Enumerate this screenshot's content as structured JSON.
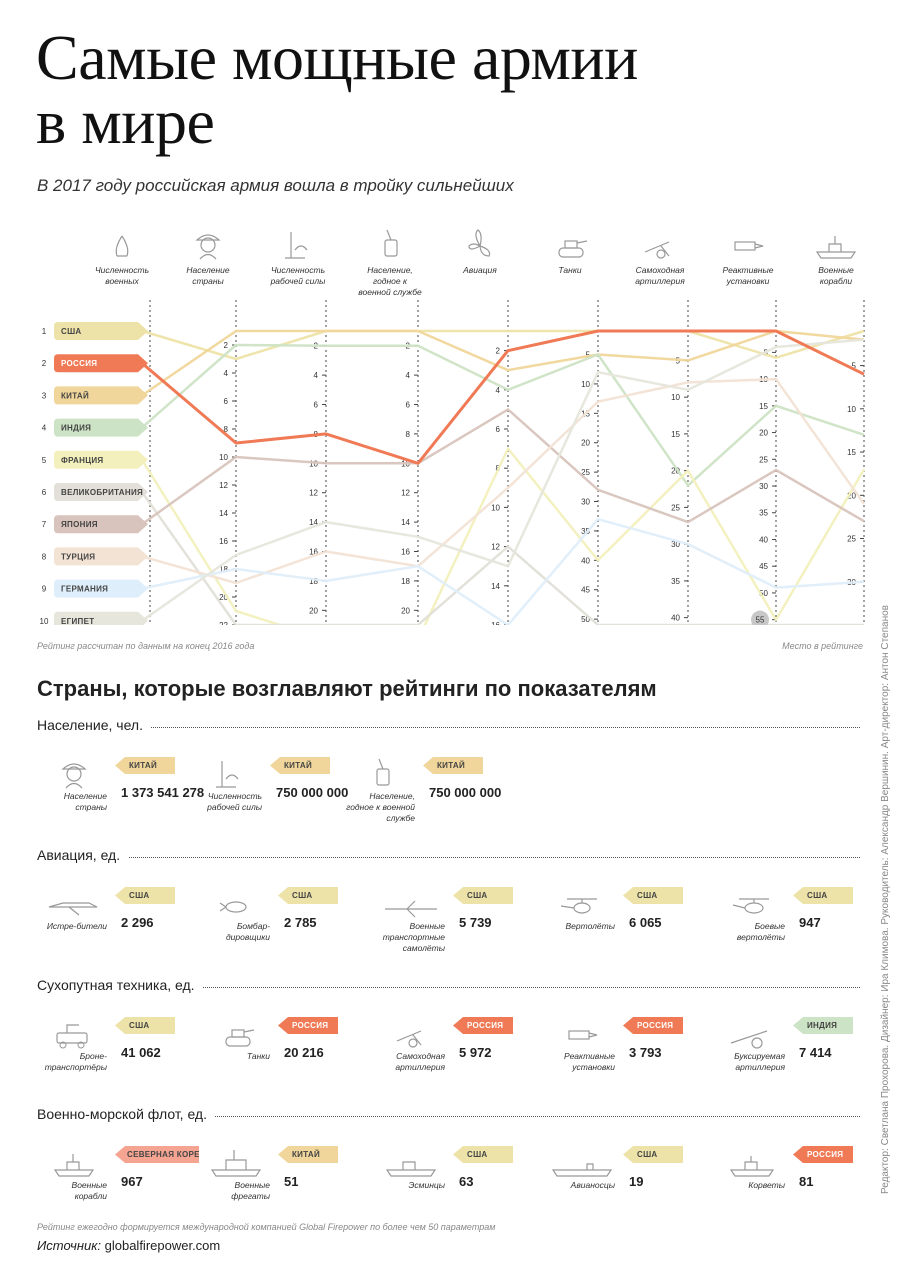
{
  "header": {
    "title_line1": "Самые мощные армии",
    "title_line2": "в мире",
    "subtitle": "В 2017 году российская армия вошла в тройку сильнейших"
  },
  "colors": {
    "США": "#ede3a8",
    "РОССИЯ": "#ef7a55",
    "КИТАЙ": "#f0d69a",
    "ИНДИЯ": "#cde3c5",
    "ФРАНЦИЯ": "#f3f0bd",
    "ВЕЛИКОБРИТАНИЯ": "#e2e0d8",
    "ЯПОНИЯ": "#d8c4bd",
    "ТУРЦИЯ": "#f2e3d5",
    "ГЕРМАНИЯ": "#dfeefb",
    "ЕГИПЕТ": "#e6e6dc",
    "СЕВЕРНАЯ КОРЕЯ": "#f5a492"
  },
  "chart_data": {
    "type": "bump",
    "countries": [
      {
        "rank": "1",
        "name": "США"
      },
      {
        "rank": "2",
        "name": "РОССИЯ"
      },
      {
        "rank": "3",
        "name": "КИТАЙ"
      },
      {
        "rank": "4",
        "name": "ИНДИЯ"
      },
      {
        "rank": "5",
        "name": "ФРАНЦИЯ"
      },
      {
        "rank": "6",
        "name": "ВЕЛИКОБРИТАНИЯ"
      },
      {
        "rank": "7",
        "name": "ЯПОНИЯ"
      },
      {
        "rank": "8",
        "name": "ТУРЦИЯ"
      },
      {
        "rank": "9",
        "name": "ГЕРМАНИЯ"
      },
      {
        "rank": "10",
        "name": "ЕГИПЕТ"
      }
    ],
    "columns": [
      {
        "label": "Численность военных",
        "icon": "soldier-icon",
        "ticks": []
      },
      {
        "label": "Население страны",
        "icon": "person-icon",
        "min": 1,
        "max": 22,
        "ticks": [
          2,
          4,
          6,
          8,
          10,
          12,
          14,
          16,
          18,
          20,
          22
        ]
      },
      {
        "label": "Численность рабочей силы",
        "icon": "worker-icon",
        "min": 1,
        "max": 21,
        "ticks": [
          2,
          4,
          6,
          8,
          10,
          12,
          14,
          16,
          18,
          20
        ]
      },
      {
        "label": "Население, годное к военной службе",
        "icon": "dogtag-icon",
        "min": 1,
        "max": 21,
        "ticks": [
          2,
          4,
          6,
          8,
          10,
          12,
          14,
          16,
          18,
          20
        ]
      },
      {
        "label": "Авиация",
        "icon": "propeller-icon",
        "min": 1,
        "max": 16,
        "ticks": [
          2,
          4,
          6,
          8,
          10,
          12,
          14,
          16
        ]
      },
      {
        "label": "Танки",
        "icon": "tank-icon",
        "min": 1,
        "max": 51,
        "ticks": [
          5,
          10,
          15,
          20,
          25,
          30,
          35,
          40,
          45,
          50
        ]
      },
      {
        "label": "Самоходная артиллерия",
        "icon": "artillery-icon",
        "min": 1,
        "max": 41,
        "ticks": [
          5,
          10,
          15,
          20,
          25,
          30,
          35,
          40
        ]
      },
      {
        "label": "Реактивные установки",
        "icon": "rocket-launcher-icon",
        "min": 1,
        "max": 56,
        "ticks": [
          5,
          10,
          15,
          20,
          25,
          30,
          35,
          40,
          45,
          50,
          55
        ]
      },
      {
        "label": "Военные корабли",
        "icon": "warship-icon",
        "min": 1,
        "max": 35,
        "ticks": [
          5,
          10,
          15,
          20,
          25,
          30
        ]
      }
    ],
    "series": [
      {
        "name": "США",
        "values": [
          null,
          3,
          1,
          1,
          1,
          1,
          1,
          6,
          1
        ]
      },
      {
        "name": "РОССИЯ",
        "values": [
          null,
          9,
          8,
          10,
          2,
          1,
          1,
          1,
          6
        ]
      },
      {
        "name": "КИТАЙ",
        "values": [
          null,
          1,
          1,
          1,
          3,
          5,
          5,
          1,
          2
        ]
      },
      {
        "name": "ИНДИЯ",
        "values": [
          null,
          2,
          2,
          2,
          4,
          5,
          22,
          15,
          13
        ]
      },
      {
        "name": "ФРАНЦИЯ",
        "values": [
          null,
          21,
          22,
          22,
          7,
          40,
          20,
          55,
          17
        ]
      },
      {
        "name": "ВЕЛИКОБРИТАНИЯ",
        "values": [
          null,
          22,
          21,
          21,
          12,
          51,
          41,
          56,
          35
        ]
      },
      {
        "name": "ЯПОНИЯ",
        "values": [
          null,
          10,
          10,
          10,
          5,
          28,
          27,
          27,
          23
        ]
      },
      {
        "name": "ТУРЦИЯ",
        "values": [
          null,
          19,
          16,
          17,
          9,
          13,
          8,
          10,
          21
        ]
      },
      {
        "name": "ГЕРМАНИЯ",
        "values": [
          null,
          18,
          18,
          17,
          16,
          33,
          30,
          49,
          30
        ]
      },
      {
        "name": "ЕГИПЕТ",
        "values": [
          null,
          17,
          14,
          15,
          13,
          8,
          9,
          4,
          2
        ]
      }
    ],
    "highlight_label": "55",
    "note_left": "Рейтинг рассчитан по данным на конец 2016 года",
    "note_right": "Место в рейтинге"
  },
  "leaders": {
    "heading": "Страны, которые возглавляют рейтинги по показателям",
    "sections": [
      {
        "title": "Население, чел.",
        "items": [
          {
            "label": "Население страны",
            "icon": "person-icon",
            "country": "КИТАЙ",
            "value": "1 373 541 278"
          },
          {
            "label": "Численность рабочей силы",
            "icon": "worker-icon",
            "country": "КИТАЙ",
            "value": "750 000 000"
          },
          {
            "label": "Население, годное к военной службе",
            "icon": "dogtag-icon",
            "country": "КИТАЙ",
            "value": "750 000 000"
          }
        ]
      },
      {
        "title": "Авиация, ед.",
        "items": [
          {
            "label": "Истре-бители",
            "icon": "fighter-jet-icon",
            "country": "США",
            "value": "2 296"
          },
          {
            "label": "Бомбар-дировщики",
            "icon": "bomber-icon",
            "country": "США",
            "value": "2 785"
          },
          {
            "label": "Военные транспортные самолёты",
            "icon": "transport-plane-icon",
            "country": "США",
            "value": "5 739"
          },
          {
            "label": "Вертолёты",
            "icon": "helicopter-icon",
            "country": "США",
            "value": "6 065"
          },
          {
            "label": "Боевые вертолёты",
            "icon": "attack-helicopter-icon",
            "country": "США",
            "value": "947"
          }
        ]
      },
      {
        "title": "Сухопутная техника, ед.",
        "items": [
          {
            "label": "Броне-транспортёры",
            "icon": "apc-icon",
            "country": "США",
            "value": "41 062"
          },
          {
            "label": "Танки",
            "icon": "tank-icon",
            "country": "РОССИЯ",
            "value": "20 216"
          },
          {
            "label": "Самоходная артиллерия",
            "icon": "artillery-icon",
            "country": "РОССИЯ",
            "value": "5 972"
          },
          {
            "label": "Реактивные установки",
            "icon": "rocket-launcher-icon",
            "country": "РОССИЯ",
            "value": "3 793"
          },
          {
            "label": "Буксируемая артиллерия",
            "icon": "towed-artillery-icon",
            "country": "ИНДИЯ",
            "value": "7 414"
          }
        ]
      },
      {
        "title": "Военно-морской флот, ед.",
        "items": [
          {
            "label": "Военные корабли",
            "icon": "warship-icon",
            "country": "СЕВЕРНАЯ КОРЕЯ",
            "value": "967"
          },
          {
            "label": "Военные фрегаты",
            "icon": "frigate-icon",
            "country": "КИТАЙ",
            "value": "51"
          },
          {
            "label": "Эсминцы",
            "icon": "destroyer-icon",
            "country": "США",
            "value": "63"
          },
          {
            "label": "Авианосцы",
            "icon": "carrier-icon",
            "country": "США",
            "value": "19"
          },
          {
            "label": "Корветы",
            "icon": "corvette-icon",
            "country": "РОССИЯ",
            "value": "81"
          }
        ]
      }
    ]
  },
  "footer": {
    "note": "Рейтинг ежегодно формируется международной компанией Global Firepower по более чем 50 параметрам",
    "source_label": "Источник:",
    "source_value": "globalfirepower.com",
    "credits": "Редактор: Светлана Прохорова. Дизайнер: Ира Климова. Руководитель: Александр Вершинин. Арт-директор: Антон Степанов"
  }
}
